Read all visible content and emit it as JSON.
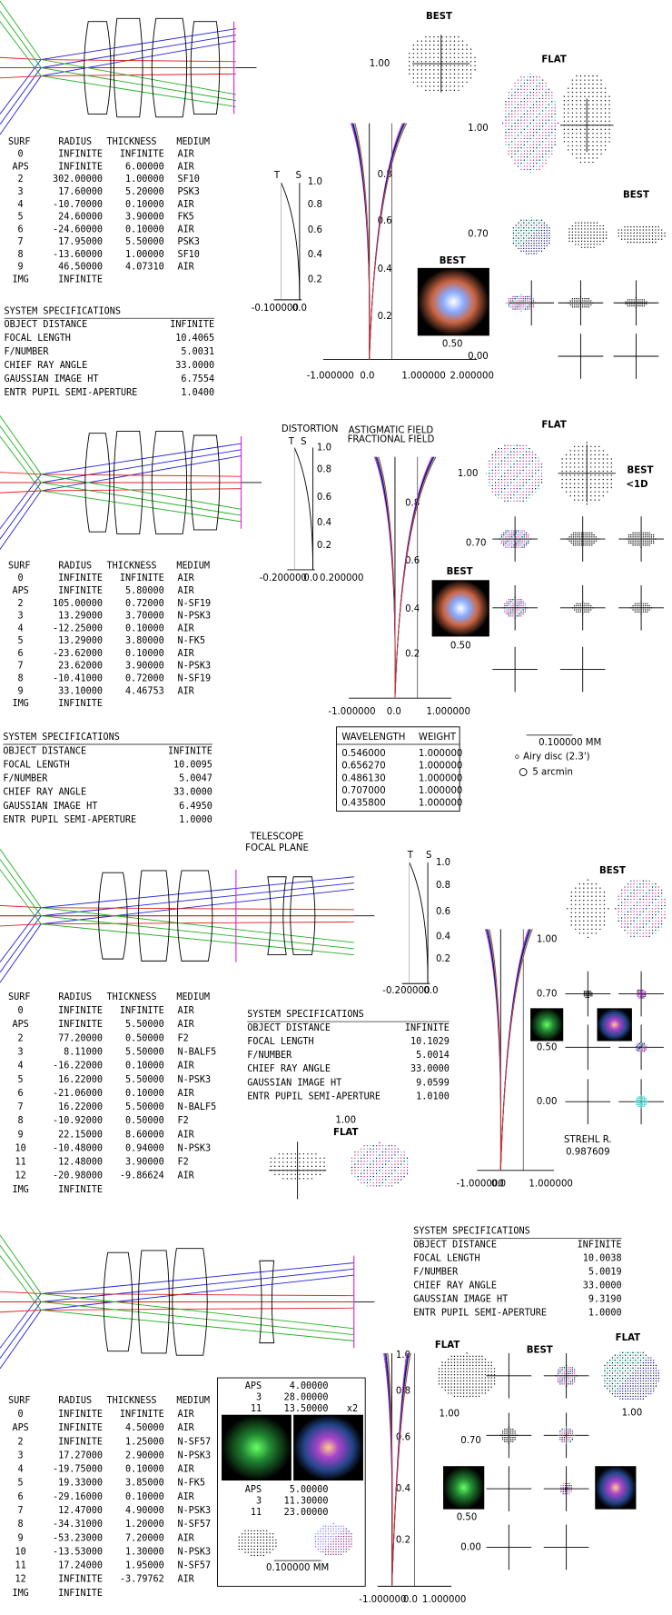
{
  "panels": [
    {
      "table": {
        "header": [
          "SURF",
          "RADIUS",
          "THICKNESS",
          "MEDIUM"
        ],
        "rows": [
          [
            "0",
            "INFINITE",
            "INFINITE",
            "AIR"
          ],
          [
            "APS",
            "INFINITE",
            "6.00000",
            "AIR"
          ],
          [
            "2",
            "302.00000",
            "1.00000",
            "SF10"
          ],
          [
            "3",
            "17.60000",
            "5.20000",
            "PSK3"
          ],
          [
            "4",
            "-10.70000",
            "0.10000",
            "AIR"
          ],
          [
            "5",
            "24.60000",
            "3.90000",
            "FK5"
          ],
          [
            "6",
            "-24.60000",
            "0.10000",
            "AIR"
          ],
          [
            "7",
            "17.95000",
            "5.50000",
            "PSK3"
          ],
          [
            "8",
            "-13.60000",
            "1.00000",
            "SF10"
          ],
          [
            "9",
            "46.50000",
            "4.07310",
            "AIR"
          ],
          [
            "IMG",
            "INFINITE"
          ]
        ]
      },
      "specs": {
        "title": "SYSTEM SPECIFICATIONS",
        "rows": [
          [
            "OBJECT DISTANCE",
            "INFINITE"
          ],
          [
            "FOCAL LENGTH",
            "10.4065"
          ],
          [
            "F/NUMBER",
            "5.0031"
          ],
          [
            "CHIEF RAY ANGLE",
            "33.0000"
          ],
          [
            "GAUSSIAN IMAGE HT",
            "6.7554"
          ],
          [
            "ENTR PUPIL SEMI-APERTURE",
            "1.0400"
          ]
        ]
      },
      "labels": [
        "BEST",
        "1.00",
        "FLAT",
        "1.00",
        "BEST",
        "0.70",
        "BEST",
        "0.50",
        "0.00",
        "T",
        "S",
        "1.0",
        "0.8",
        "0.6",
        "0.4",
        "0.2",
        "-0.100000",
        "0.0",
        "0.8",
        "0.6",
        "0.4",
        "0.2",
        "-1.000000",
        "0.0",
        "1.000000",
        "2.000000"
      ]
    },
    {
      "table": {
        "header": [
          "SURF",
          "RADIUS",
          "THICKNESS",
          "MEDIUM"
        ],
        "rows": [
          [
            "0",
            "INFINITE",
            "INFINITE",
            "AIR"
          ],
          [
            "APS",
            "INFINITE",
            "5.80000",
            "AIR"
          ],
          [
            "2",
            "105.00000",
            "0.72000",
            "N-SF19"
          ],
          [
            "3",
            "13.29000",
            "3.70000",
            "N-PSK3"
          ],
          [
            "4",
            "-12.25000",
            "0.10000",
            "AIR"
          ],
          [
            "5",
            "13.29000",
            "3.80000",
            "N-FK5"
          ],
          [
            "6",
            "-23.62000",
            "0.10000",
            "AIR"
          ],
          [
            "7",
            "23.62000",
            "3.90000",
            "N-PSK3"
          ],
          [
            "8",
            "-10.41000",
            "0.72000",
            "N-SF19"
          ],
          [
            "9",
            "33.10000",
            "4.46753",
            "AIR"
          ],
          [
            "IMG",
            "INFINITE"
          ]
        ]
      },
      "specs": {
        "title": "SYSTEM SPECIFICATIONS",
        "rows": [
          [
            "OBJECT DISTANCE",
            "INFINITE"
          ],
          [
            "FOCAL LENGTH",
            "10.0095"
          ],
          [
            "F/NUMBER",
            "5.0047"
          ],
          [
            "CHIEF RAY ANGLE",
            "33.0000"
          ],
          [
            "GAUSSIAN IMAGE HT",
            "6.4950"
          ],
          [
            "ENTR PUPIL SEMI-APERTURE",
            "1.0000"
          ]
        ]
      },
      "labels": [
        "DISTORTION",
        "T",
        "S",
        "1.0",
        "0.8",
        "0.6",
        "0.4",
        "0.2",
        "-0.200000",
        "0.0",
        "0.200000",
        "ASTIGMATIC FIELD",
        "FRACTIONAL FIELD",
        "FLAT",
        "1.00",
        "BEST",
        "<1D",
        "0.70",
        "BEST",
        "0.50",
        "0.8",
        "0.6",
        "0.4",
        "0.2",
        "-1.000000",
        "0.0",
        "1.000000"
      ]
    },
    {
      "table": {
        "header": [
          "SURF",
          "RADIUS",
          "THICKNESS",
          "MEDIUM"
        ],
        "rows": [
          [
            "0",
            "INFINITE",
            "INFINITE",
            "AIR"
          ],
          [
            "APS",
            "INFINITE",
            "5.50000",
            "AIR"
          ],
          [
            "2",
            "77.20000",
            "0.50000",
            "F2"
          ],
          [
            "3",
            "8.11000",
            "5.50000",
            "N-BALF5"
          ],
          [
            "4",
            "-16.22000",
            "0.10000",
            "AIR"
          ],
          [
            "5",
            "16.22000",
            "5.50000",
            "N-PSK3"
          ],
          [
            "6",
            "-21.06000",
            "0.10000",
            "AIR"
          ],
          [
            "7",
            "16.22000",
            "5.50000",
            "N-BALF5"
          ],
          [
            "8",
            "-10.92000",
            "0.50000",
            "F2"
          ],
          [
            "9",
            "22.15000",
            "8.60000",
            "AIR"
          ],
          [
            "10",
            "-10.48000",
            "0.94000",
            "N-PSK3"
          ],
          [
            "11",
            "12.48000",
            "3.90000",
            "F2"
          ],
          [
            "12",
            "-20.98000",
            "-9.86624",
            "AIR"
          ],
          [
            "IMG",
            "INFINITE"
          ]
        ]
      },
      "specs": {
        "title": "SYSTEM SPECIFICATIONS",
        "rows": [
          [
            "OBJECT DISTANCE",
            "INFINITE"
          ],
          [
            "FOCAL LENGTH",
            "10.1029"
          ],
          [
            "F/NUMBER",
            "5.0014"
          ],
          [
            "CHIEF RAY ANGLE",
            "33.0000"
          ],
          [
            "GAUSSIAN IMAGE HT",
            "9.0599"
          ],
          [
            "ENTR PUPIL SEMI-APERTURE",
            "1.0100"
          ]
        ]
      },
      "labels": [
        "TELESCOPE",
        "FOCAL PLANE",
        "T",
        "S",
        "1.0",
        "0.8",
        "0.6",
        "0.4",
        "0.2",
        "-0.200000",
        "0.0",
        "BEST",
        "1.00",
        "0.70",
        "0.50",
        "0.00",
        "STREHL R.",
        "0.987609",
        "1.00",
        "FLAT",
        "-1.000000",
        "0.0",
        "1.000000"
      ]
    },
    {
      "table": {
        "header": [
          "SURF",
          "RADIUS",
          "THICKNESS",
          "MEDIUM"
        ],
        "rows": [
          [
            "0",
            "INFINITE",
            "INFINITE",
            "AIR"
          ],
          [
            "APS",
            "INFINITE",
            "4.50000",
            "AIR"
          ],
          [
            "2",
            "INFINITE",
            "1.25000",
            "N-SF57"
          ],
          [
            "3",
            "17.27000",
            "2.90000",
            "N-PSK3"
          ],
          [
            "4",
            "-19.75000",
            "0.10000",
            "AIR"
          ],
          [
            "5",
            "19.33000",
            "3.85000",
            "N-FK5"
          ],
          [
            "6",
            "-29.16000",
            "0.10000",
            "AIR"
          ],
          [
            "7",
            "12.47000",
            "4.90000",
            "N-PSK3"
          ],
          [
            "8",
            "-34.31000",
            "1.20000",
            "N-SF57"
          ],
          [
            "9",
            "-53.23000",
            "7.20000",
            "AIR"
          ],
          [
            "10",
            "-13.53000",
            "1.30000",
            "N-PSK3"
          ],
          [
            "11",
            "17.24000",
            "1.95000",
            "N-SF57"
          ],
          [
            "12",
            "INFINITE",
            "-3.79762",
            "AIR"
          ],
          [
            "IMG",
            "INFINITE"
          ]
        ]
      },
      "specs": {
        "title": "SYSTEM SPECIFICATIONS",
        "rows": [
          [
            "OBJECT DISTANCE",
            "INFINITE"
          ],
          [
            "FOCAL LENGTH",
            "10.0038"
          ],
          [
            "F/NUMBER",
            "5.0019"
          ],
          [
            "CHIEF RAY ANGLE",
            "33.0000"
          ],
          [
            "GAUSSIAN IMAGE HT",
            "9.3190"
          ],
          [
            "ENTR PUPIL SEMI-APERTURE",
            "1.0000"
          ]
        ]
      },
      "labels": [
        "FLAT",
        "BEST",
        "FLAT",
        "1.00",
        "1.00",
        "0.70",
        "0.50",
        "0.00",
        "1.0",
        "0.8",
        "0.6",
        "0.4",
        "0.2",
        "-1.000000",
        "0.0",
        "1.000000"
      ]
    }
  ],
  "wavelengths": {
    "header": [
      "WAVELENGTH",
      "WEIGHT"
    ],
    "rows": [
      {
        "wavelength": "0.546000",
        "weight": "1.000000",
        "color": "#000000"
      },
      {
        "wavelength": "0.656270",
        "weight": "1.000000",
        "color": "#ff2020"
      },
      {
        "wavelength": "0.486130",
        "weight": "1.000000",
        "color": "#2020ff"
      },
      {
        "wavelength": "0.707000",
        "weight": "1.000000",
        "color": "#e020e0"
      },
      {
        "wavelength": "0.435800",
        "weight": "1.000000",
        "color": "#20d0d0"
      }
    ]
  },
  "legend": [
    "0.100000 MM",
    "Airy disc (2.3')",
    "5 arcmin"
  ],
  "inset": {
    "groups": [
      {
        "rows": [
          [
            "APS",
            "4.00000"
          ],
          [
            "3",
            "28.00000"
          ],
          [
            "11",
            "13.50000"
          ]
        ],
        "zoom": "x2"
      },
      {
        "rows": [
          [
            "APS",
            "5.00000"
          ],
          [
            "3",
            "11.30000"
          ],
          [
            "11",
            "23.00000"
          ]
        ]
      }
    ],
    "scale": "0.100000 MM"
  }
}
